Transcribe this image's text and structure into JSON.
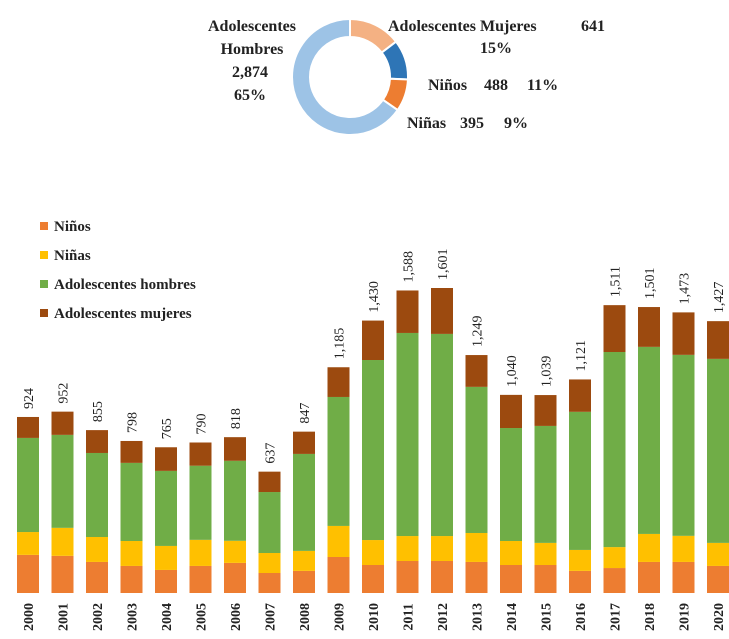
{
  "chart_data": [
    {
      "type": "pie",
      "categories": [
        "Adolescentes Mujeres",
        "Niños",
        "Niñas",
        "Adolescentes Hombres"
      ],
      "values": [
        641,
        488,
        395,
        2874
      ],
      "value_labels": [
        "641",
        "488",
        "395",
        "2,874"
      ],
      "percentages": [
        15,
        11,
        9,
        65
      ],
      "percentage_labels": [
        "15%",
        "11%",
        "9%",
        "65%"
      ],
      "colors": [
        "#f4b183",
        "#2e75b6",
        "#ed7d31",
        "#9dc3e6"
      ]
    },
    {
      "type": "bar",
      "stacked": true,
      "legend": "top-left",
      "categories": [
        "2000",
        "2001",
        "2002",
        "2003",
        "2004",
        "2005",
        "2006",
        "2007",
        "2008",
        "2009",
        "2010",
        "2011",
        "2012",
        "2013",
        "2014",
        "2015",
        "2016",
        "2017",
        "2018",
        "2019",
        "2020"
      ],
      "series": [
        {
          "name": "Niños",
          "color": "#ed7d31",
          "values": [
            200,
            195,
            163,
            142,
            121,
            142,
            158,
            105,
            116,
            189,
            147,
            168,
            168,
            163,
            147,
            147,
            116,
            131,
            163,
            163,
            142
          ]
        },
        {
          "name": "Niñas",
          "color": "#ffc000",
          "values": [
            120,
            147,
            131,
            131,
            126,
            137,
            116,
            105,
            105,
            163,
            131,
            131,
            131,
            152,
            126,
            116,
            110,
            110,
            147,
            137,
            121
          ]
        },
        {
          "name": "Adolescentes hombres",
          "color": "#70ad47",
          "values": [
            494,
            488,
            441,
            410,
            394,
            389,
            420,
            320,
            509,
            677,
            945,
            1066,
            1061,
            767,
            593,
            614,
            725,
            1024,
            982,
            950,
            966
          ]
        },
        {
          "name": "Adolescentes mujeres",
          "color": "#9c4a0f",
          "values": [
            110,
            122,
            120,
            115,
            124,
            122,
            124,
            107,
            117,
            156,
            207,
            223,
            241,
            167,
            174,
            162,
            170,
            246,
            209,
            223,
            198
          ]
        }
      ],
      "totals": [
        924,
        952,
        855,
        798,
        765,
        790,
        818,
        637,
        847,
        1185,
        1430,
        1588,
        1601,
        1249,
        1040,
        1039,
        1121,
        1511,
        1501,
        1473,
        1427
      ],
      "total_labels": [
        "924",
        "952",
        "855",
        "798",
        "765",
        "790",
        "818",
        "637",
        "847",
        "1,185",
        "1,430",
        "1,588",
        "1,601",
        "1,249",
        "1,040",
        "1,039",
        "1,121",
        "1,511",
        "1,501",
        "1,473",
        "1,427"
      ]
    }
  ]
}
